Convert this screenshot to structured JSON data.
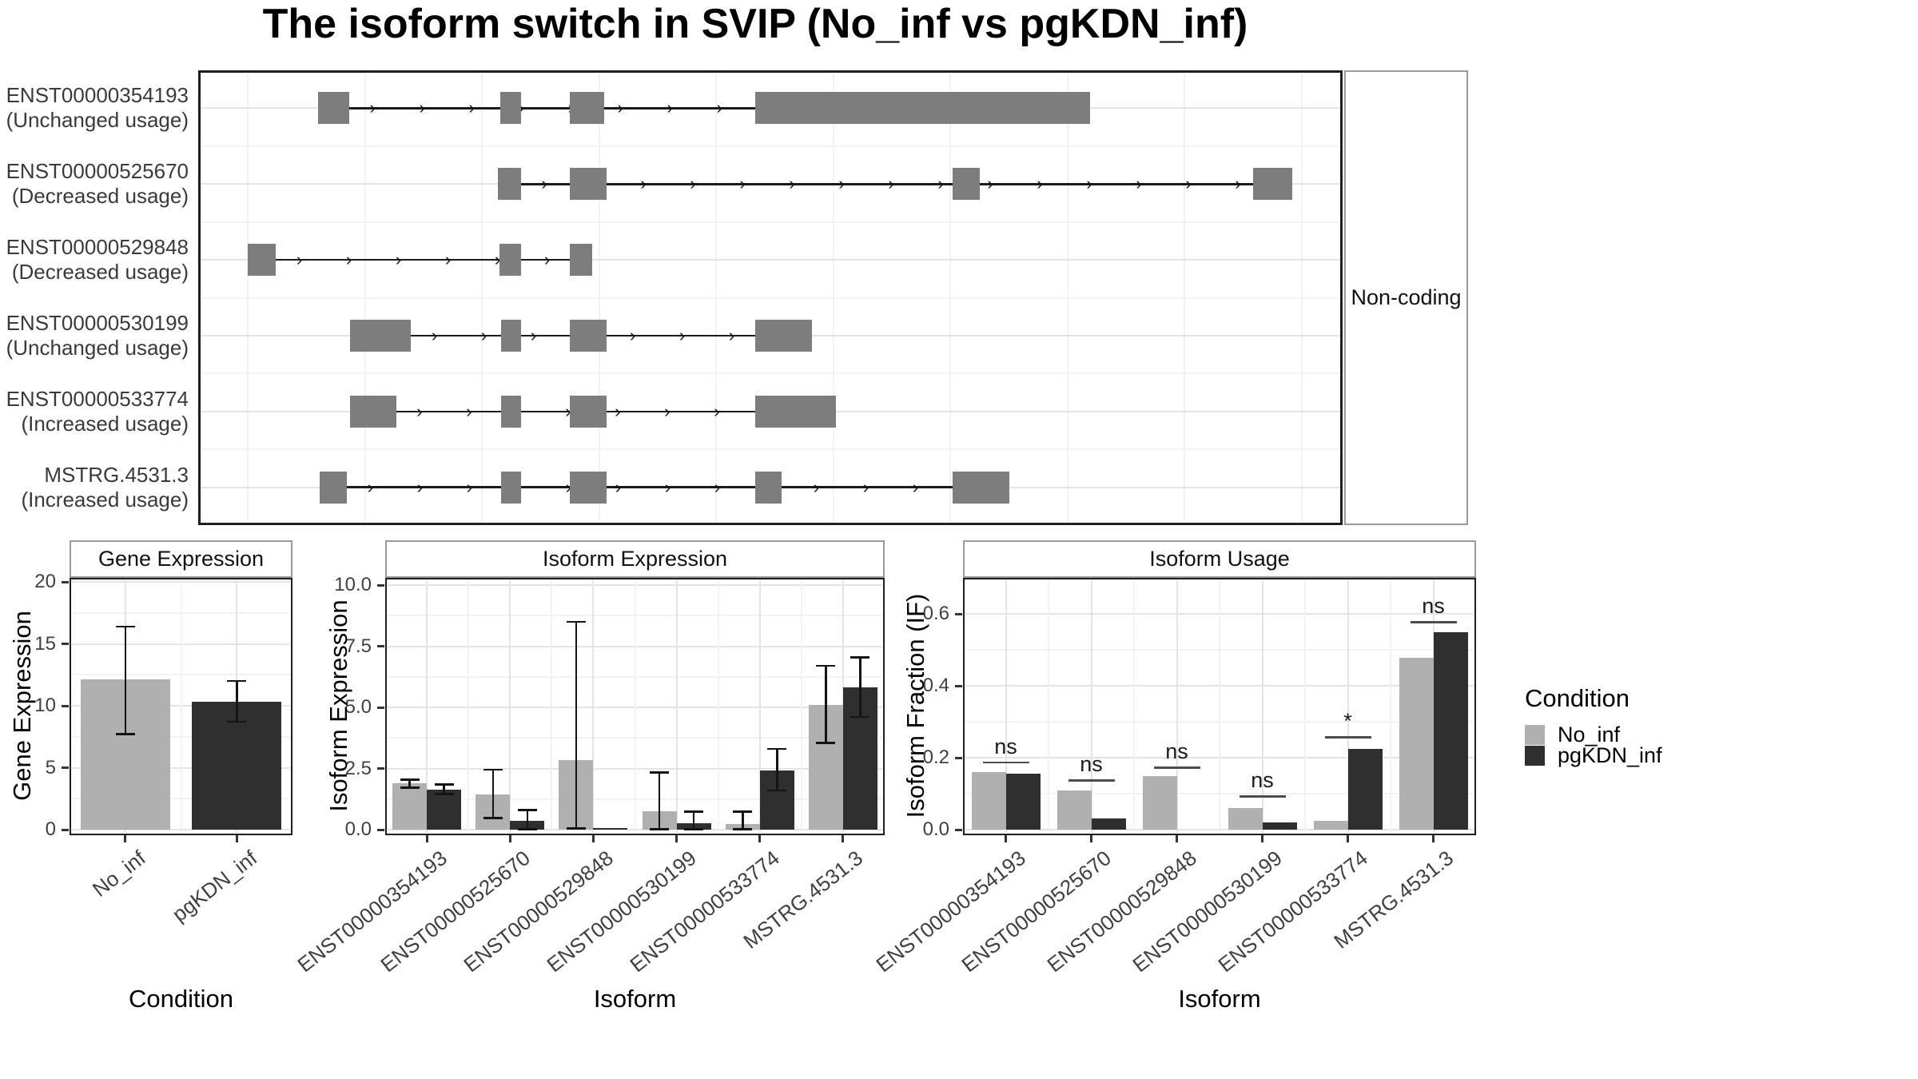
{
  "title": "The isoform switch in SVIP (No_inf vs pgKDN_inf)",
  "colors": {
    "no_inf": "#b0b0b0",
    "pgKDN_inf": "#2f2f2f",
    "exon": "#7d7d7d",
    "intron_line": "#1a1a1a",
    "grid_major": "#e4e4e4",
    "grid_minor": "#f2f2f2",
    "panel_border": "#1f1f1f",
    "strip_border": "#9a9a9a"
  },
  "legend": {
    "title": "Condition",
    "items": [
      {
        "label": "No_inf",
        "color": "#b0b0b0"
      },
      {
        "label": "pgKDN_inf",
        "color": "#2f2f2f"
      }
    ]
  },
  "transcript_plot": {
    "strip_label": "Non-coding",
    "isoforms": [
      {
        "id": "ENST00000354193",
        "usage_label": "(Unchanged usage)",
        "line": [
          0.132,
          0.487
        ],
        "exons": [
          [
            0.105,
            0.132
          ],
          [
            0.264,
            0.282
          ],
          [
            0.325,
            0.355
          ],
          [
            0.487,
            0.779
          ]
        ]
      },
      {
        "id": "ENST00000525670",
        "usage_label": "(Decreased usage)",
        "line": [
          0.282,
          0.922
        ],
        "exons": [
          [
            0.262,
            0.282
          ],
          [
            0.325,
            0.357
          ],
          [
            0.659,
            0.683
          ],
          [
            0.922,
            0.956
          ]
        ]
      },
      {
        "id": "ENST00000529848",
        "usage_label": "(Decreased usage)",
        "line": [
          0.068,
          0.325
        ],
        "exons": [
          [
            0.043,
            0.068
          ],
          [
            0.263,
            0.282
          ],
          [
            0.325,
            0.344
          ]
        ]
      },
      {
        "id": "ENST00000530199",
        "usage_label": "(Unchanged usage)",
        "line": [
          0.186,
          0.487
        ],
        "exons": [
          [
            0.133,
            0.186
          ],
          [
            0.265,
            0.282
          ],
          [
            0.325,
            0.357
          ],
          [
            0.487,
            0.536
          ]
        ]
      },
      {
        "id": "ENST00000533774",
        "usage_label": "(Increased usage)",
        "line": [
          0.173,
          0.487
        ],
        "exons": [
          [
            0.133,
            0.173
          ],
          [
            0.265,
            0.282
          ],
          [
            0.325,
            0.357
          ],
          [
            0.487,
            0.557
          ]
        ]
      },
      {
        "id": "MSTRG.4531.3",
        "usage_label": "(Increased usage)",
        "line": [
          0.13,
          0.659
        ],
        "exons": [
          [
            0.106,
            0.13
          ],
          [
            0.265,
            0.282
          ],
          [
            0.325,
            0.357
          ],
          [
            0.487,
            0.51
          ],
          [
            0.659,
            0.709
          ]
        ]
      }
    ]
  },
  "chart_data": [
    {
      "type": "bar",
      "title": "Gene Expression",
      "xlabel": "Condition",
      "ylabel": "Gene Expression",
      "categories": [
        "No_inf",
        "pgKDN_inf"
      ],
      "values": [
        12.1,
        10.3
      ],
      "errors": [
        [
          7.7,
          16.4
        ],
        [
          8.7,
          12.0
        ]
      ],
      "ylim": [
        0,
        20.4
      ],
      "yticks": [
        0,
        5,
        10,
        15,
        20
      ],
      "ytick_labels": [
        "0",
        "5",
        "10",
        "15",
        "20"
      ],
      "legend_position": "none",
      "grid": true
    },
    {
      "type": "bar",
      "title": "Isoform Expression",
      "xlabel": "Isoform",
      "ylabel": "Isoform Expression",
      "categories": [
        "ENST00000354193",
        "ENST00000525670",
        "ENST00000529848",
        "ENST00000530199",
        "ENST00000533774",
        "MSTRG.4531.3"
      ],
      "series": [
        {
          "name": "No_inf",
          "values": [
            1.9,
            1.45,
            2.85,
            0.74,
            0.22,
            5.1
          ],
          "errors": [
            [
              1.72,
              2.05
            ],
            [
              0.48,
              2.45
            ],
            [
              0.05,
              8.5
            ],
            [
              0.02,
              2.33
            ],
            [
              0.02,
              0.73
            ],
            [
              3.55,
              6.7
            ]
          ]
        },
        {
          "name": "pgKDN_inf",
          "values": [
            1.65,
            0.37,
            0.02,
            0.27,
            2.42,
            5.82
          ],
          "errors": [
            [
              1.45,
              1.85
            ],
            [
              0.02,
              0.8
            ],
            null,
            [
              0.02,
              0.74
            ],
            [
              1.6,
              3.3
            ],
            [
              4.6,
              7.05
            ]
          ]
        }
      ],
      "ylim": [
        0,
        10.3
      ],
      "yticks": [
        0,
        2.5,
        5,
        7.5,
        10
      ],
      "ytick_labels": [
        "0.0",
        "2.5",
        "5.0",
        "7.5",
        "10.0"
      ],
      "legend_position": "none",
      "grid": true
    },
    {
      "type": "bar",
      "title": "Isoform Usage",
      "xlabel": "Isoform",
      "ylabel": "Isoform Fraction (IF)",
      "categories": [
        "ENST00000354193",
        "ENST00000525670",
        "ENST00000529848",
        "ENST00000530199",
        "ENST00000533774",
        "MSTRG.4531.3"
      ],
      "series": [
        {
          "name": "No_inf",
          "values": [
            0.161,
            0.109,
            0.15,
            0.061,
            0.025,
            0.477
          ]
        },
        {
          "name": "pgKDN_inf",
          "values": [
            0.156,
            0.032,
            0.0,
            0.021,
            0.225,
            0.55
          ]
        }
      ],
      "significance": [
        {
          "label": "ns",
          "y": 0.19
        },
        {
          "label": "ns",
          "y": 0.14
        },
        {
          "label": "ns",
          "y": 0.175
        },
        {
          "label": "ns",
          "y": 0.095
        },
        {
          "label": "*",
          "y": 0.26
        },
        {
          "label": "ns",
          "y": 0.58
        }
      ],
      "ylim": [
        0,
        0.65
      ],
      "yticks": [
        0.0,
        0.2,
        0.4,
        0.6
      ],
      "ytick_labels": [
        "0.0",
        "0.2",
        "0.4",
        "0.6"
      ],
      "legend_position": "right",
      "grid": true
    }
  ]
}
